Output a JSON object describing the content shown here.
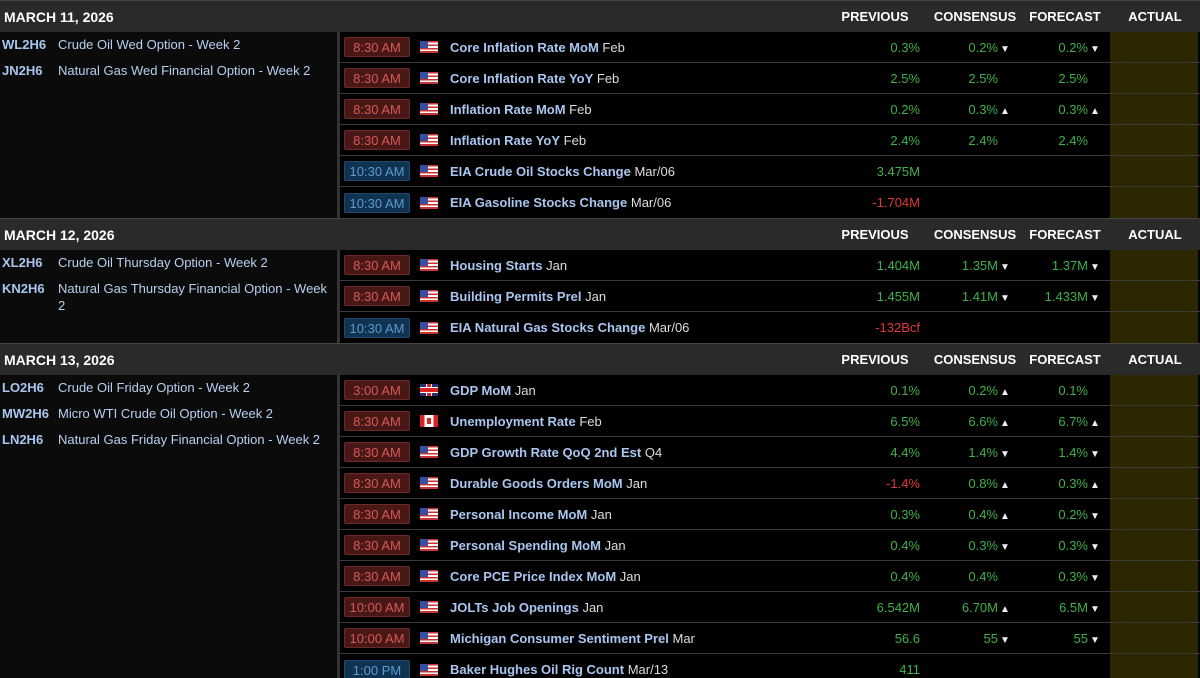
{
  "columns": {
    "previous": "PREVIOUS",
    "consensus": "CONSENSUS",
    "forecast": "FORECAST",
    "actual": "ACTUAL"
  },
  "colors": {
    "time_red": "#d25a55",
    "time_blue": "#5d9ad0",
    "positive": "#3fb04a",
    "negative": "#e0383a",
    "actual_bg": "#2c2700"
  },
  "days": [
    {
      "date": "MARCH 11, 2026",
      "symbols": [
        {
          "code": "WL2H6",
          "desc": "Crude Oil Wed Option - Week 2"
        },
        {
          "code": "JN2H6",
          "desc": "Natural Gas Wed Financial Option - Week 2"
        }
      ],
      "events": [
        {
          "time": "8:30 AM",
          "time_color": "red",
          "flag": "us",
          "name": "Core Inflation Rate MoM",
          "period": "Feb",
          "previous": "0.3%",
          "prev_color": "g",
          "consensus": "0.2%",
          "cons_arrow": "down",
          "forecast": "0.2%",
          "fore_arrow": "down",
          "actual": ""
        },
        {
          "time": "8:30 AM",
          "time_color": "red",
          "flag": "us",
          "name": "Core Inflation Rate YoY",
          "period": "Feb",
          "previous": "2.5%",
          "prev_color": "g",
          "consensus": "2.5%",
          "cons_arrow": "",
          "forecast": "2.5%",
          "fore_arrow": "",
          "actual": ""
        },
        {
          "time": "8:30 AM",
          "time_color": "red",
          "flag": "us",
          "name": "Inflation Rate MoM",
          "period": "Feb",
          "previous": "0.2%",
          "prev_color": "g",
          "consensus": "0.3%",
          "cons_arrow": "up",
          "forecast": "0.3%",
          "fore_arrow": "up",
          "actual": ""
        },
        {
          "time": "8:30 AM",
          "time_color": "red",
          "flag": "us",
          "name": "Inflation Rate YoY",
          "period": "Feb",
          "previous": "2.4%",
          "prev_color": "g",
          "consensus": "2.4%",
          "cons_arrow": "",
          "forecast": "2.4%",
          "fore_arrow": "",
          "actual": ""
        },
        {
          "time": "10:30 AM",
          "time_color": "blue",
          "flag": "us",
          "name": "EIA Crude Oil Stocks Change",
          "period": "Mar/06",
          "previous": "3.475M",
          "prev_color": "g",
          "consensus": "",
          "cons_arrow": "",
          "forecast": "",
          "fore_arrow": "",
          "actual": ""
        },
        {
          "time": "10:30 AM",
          "time_color": "blue",
          "flag": "us",
          "name": "EIA Gasoline Stocks Change",
          "period": "Mar/06",
          "previous": "-1.704M",
          "prev_color": "r",
          "consensus": "",
          "cons_arrow": "",
          "forecast": "",
          "fore_arrow": "",
          "actual": ""
        }
      ]
    },
    {
      "date": "MARCH 12, 2026",
      "symbols": [
        {
          "code": "XL2H6",
          "desc": "Crude Oil Thursday Option - Week 2"
        },
        {
          "code": "KN2H6",
          "desc": "Natural Gas Thursday Financial Option - Week 2"
        }
      ],
      "events": [
        {
          "time": "8:30 AM",
          "time_color": "red",
          "flag": "us",
          "name": "Housing Starts",
          "period": "Jan",
          "previous": "1.404M",
          "prev_color": "g",
          "consensus": "1.35M",
          "cons_arrow": "down",
          "forecast": "1.37M",
          "fore_arrow": "down",
          "actual": ""
        },
        {
          "time": "8:30 AM",
          "time_color": "red",
          "flag": "us",
          "name": "Building Permits Prel",
          "period": "Jan",
          "previous": "1.455M",
          "prev_color": "g",
          "consensus": "1.41M",
          "cons_arrow": "down",
          "forecast": "1.433M",
          "fore_arrow": "down",
          "actual": ""
        },
        {
          "time": "10:30 AM",
          "time_color": "blue",
          "flag": "us",
          "name": "EIA Natural Gas Stocks Change",
          "period": "Mar/06",
          "previous": "-132Bcf",
          "prev_color": "r",
          "consensus": "",
          "cons_arrow": "",
          "forecast": "",
          "fore_arrow": "",
          "actual": ""
        }
      ]
    },
    {
      "date": "MARCH 13, 2026",
      "symbols": [
        {
          "code": "LO2H6",
          "desc": "Crude Oil Friday Option - Week 2"
        },
        {
          "code": "MW2H6",
          "desc": "Micro WTI Crude Oil Option - Week 2"
        },
        {
          "code": "LN2H6",
          "desc": "Natural Gas Friday Financial Option - Week 2"
        }
      ],
      "events": [
        {
          "time": "3:00 AM",
          "time_color": "red",
          "flag": "uk",
          "name": "GDP MoM",
          "period": "Jan",
          "previous": "0.1%",
          "prev_color": "g",
          "consensus": "0.2%",
          "cons_arrow": "up",
          "forecast": "0.1%",
          "fore_arrow": "",
          "actual": ""
        },
        {
          "time": "8:30 AM",
          "time_color": "red",
          "flag": "ca",
          "name": "Unemployment Rate",
          "period": "Feb",
          "previous": "6.5%",
          "prev_color": "g",
          "consensus": "6.6%",
          "cons_arrow": "up",
          "forecast": "6.7%",
          "fore_arrow": "up",
          "actual": ""
        },
        {
          "time": "8:30 AM",
          "time_color": "red",
          "flag": "us",
          "name": "GDP Growth Rate QoQ 2nd Est",
          "period": "Q4",
          "previous": "4.4%",
          "prev_color": "g",
          "consensus": "1.4%",
          "cons_arrow": "down",
          "forecast": "1.4%",
          "fore_arrow": "down",
          "actual": ""
        },
        {
          "time": "8:30 AM",
          "time_color": "red",
          "flag": "us",
          "name": "Durable Goods Orders MoM",
          "period": "Jan",
          "previous": "-1.4%",
          "prev_color": "r",
          "consensus": "0.8%",
          "cons_arrow": "up",
          "forecast": "0.3%",
          "fore_arrow": "up",
          "actual": ""
        },
        {
          "time": "8:30 AM",
          "time_color": "red",
          "flag": "us",
          "name": "Personal Income MoM",
          "period": "Jan",
          "previous": "0.3%",
          "prev_color": "g",
          "consensus": "0.4%",
          "cons_arrow": "up",
          "forecast": "0.2%",
          "fore_arrow": "down",
          "actual": ""
        },
        {
          "time": "8:30 AM",
          "time_color": "red",
          "flag": "us",
          "name": "Personal Spending MoM",
          "period": "Jan",
          "previous": "0.4%",
          "prev_color": "g",
          "consensus": "0.3%",
          "cons_arrow": "down",
          "forecast": "0.3%",
          "fore_arrow": "down",
          "actual": ""
        },
        {
          "time": "8:30 AM",
          "time_color": "red",
          "flag": "us",
          "name": "Core PCE Price Index MoM",
          "period": "Jan",
          "previous": "0.4%",
          "prev_color": "g",
          "consensus": "0.4%",
          "cons_arrow": "",
          "forecast": "0.3%",
          "fore_arrow": "down",
          "actual": ""
        },
        {
          "time": "10:00 AM",
          "time_color": "red",
          "flag": "us",
          "name": "JOLTs Job Openings",
          "period": "Jan",
          "previous": "6.542M",
          "prev_color": "g",
          "consensus": "6.70M",
          "cons_arrow": "up",
          "forecast": "6.5M",
          "fore_arrow": "down",
          "actual": ""
        },
        {
          "time": "10:00 AM",
          "time_color": "red",
          "flag": "us",
          "name": "Michigan Consumer Sentiment Prel",
          "period": "Mar",
          "previous": "56.6",
          "prev_color": "g",
          "consensus": "55",
          "cons_arrow": "down",
          "forecast": "55",
          "fore_arrow": "down",
          "actual": ""
        },
        {
          "time": "1:00 PM",
          "time_color": "blue",
          "flag": "us",
          "name": "Baker Hughes Oil Rig Count",
          "period": "Mar/13",
          "previous": "411",
          "prev_color": "g",
          "consensus": "",
          "cons_arrow": "",
          "forecast": "",
          "fore_arrow": "",
          "actual": ""
        }
      ]
    }
  ]
}
